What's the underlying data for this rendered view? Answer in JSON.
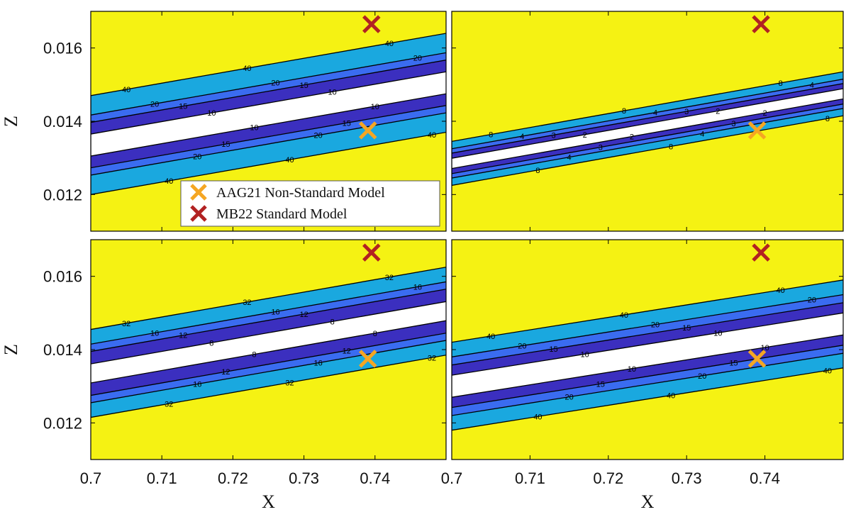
{
  "chart_data": {
    "type": "contour",
    "xlabel": "X",
    "ylabel": "Z",
    "xlim": [
      0.7,
      0.75
    ],
    "ylim": [
      0.011,
      0.017
    ],
    "xticks": [
      "0.7",
      "0.71",
      "0.72",
      "0.73",
      "0.74"
    ],
    "yticks": [
      "0.012",
      "0.014",
      "0.016"
    ],
    "colors": {
      "outside": "#f5f213",
      "band_outer": "#1aa8df",
      "band_mid": "#3a6cf0",
      "band_inner": "#3b2fbf",
      "minimum": "#ffffff",
      "line": "#000000",
      "orange_marker": "#f5a623",
      "red_marker": "#b22222"
    },
    "markers": [
      {
        "label": "AAG21 Non-Standard Model",
        "x": 0.739,
        "y": 0.01375,
        "color": "#f5a623",
        "symbol": "x"
      },
      {
        "label": "MB22 Standard Model",
        "x": 0.7395,
        "y": 0.01665,
        "color": "#b22222",
        "symbol": "x"
      }
    ],
    "legend": {
      "location": "bottom-center of top-left panel",
      "entries": [
        "AAG21 Non-Standard Model",
        "MB22 Standard Model"
      ]
    },
    "panels": [
      {
        "id": "top-left",
        "levels": [
          "40",
          "20",
          "15",
          "10",
          "7.5"
        ]
      },
      {
        "id": "top-right",
        "levels": [
          "8",
          "4",
          "3",
          "2",
          "1.5"
        ]
      },
      {
        "id": "bottom-left",
        "levels": [
          "32",
          "16",
          "12",
          "8",
          "6"
        ]
      },
      {
        "id": "bottom-right",
        "levels": [
          "40",
          "20",
          "15",
          "10",
          "7.5"
        ]
      }
    ]
  }
}
